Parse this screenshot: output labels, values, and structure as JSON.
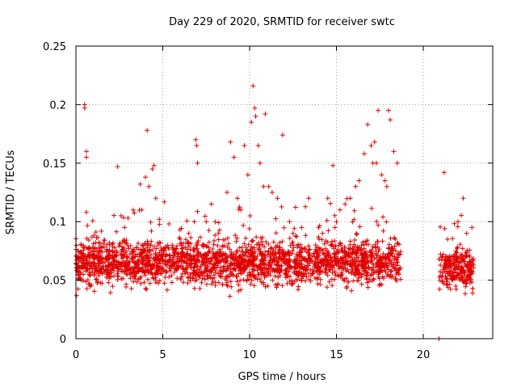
{
  "chart_data": {
    "type": "scatter",
    "title": "Day 229 of 2020, SRMTID for receiver swtc",
    "xlabel": "GPS time / hours",
    "ylabel": "SRMTID / TECUs",
    "xlim": [
      0,
      24
    ],
    "ylim": [
      0,
      0.25
    ],
    "x_ticks": [
      0,
      5,
      10,
      15,
      20
    ],
    "y_ticks": [
      0,
      0.05,
      0.1,
      0.15,
      0.2,
      0.25
    ],
    "x_tick_labels": [
      "0",
      "5",
      "10",
      "15",
      "20"
    ],
    "y_tick_labels": [
      "0",
      "0.05",
      "0.1",
      "0.15",
      "0.2",
      "0.25"
    ],
    "grid": true,
    "marker": "+",
    "series_color": "#e00000",
    "series": [
      {
        "name": "SRMTID",
        "segments": [
          {
            "x_start": 0.0,
            "x_end": 18.7,
            "base_mean": 0.065,
            "spread": 0.018
          },
          {
            "x_start": 20.9,
            "x_end": 22.9,
            "base_mean": 0.06,
            "spread": 0.017
          }
        ],
        "x": [
          0.2,
          0.4,
          0.5,
          0.5,
          0.6,
          0.6,
          0.6,
          1.0,
          1.3,
          1.8,
          2.4,
          2.6,
          2.8,
          3.0,
          3.3,
          3.7,
          4.0,
          4.1,
          4.2,
          4.4,
          4.5,
          4.6,
          4.8,
          5.1,
          6.0,
          6.5,
          6.9,
          6.95,
          7.0,
          7.5,
          7.8,
          8.2,
          8.7,
          8.9,
          9.1,
          9.3,
          9.5,
          9.7,
          9.9,
          10.1,
          10.2,
          10.3,
          10.35,
          10.5,
          10.6,
          10.8,
          10.9,
          11.1,
          11.3,
          11.6,
          11.9,
          12.3,
          12.5,
          12.8,
          13.0,
          13.4,
          13.8,
          14.0,
          14.2,
          14.5,
          14.8,
          15.0,
          15.2,
          15.5,
          15.8,
          16.1,
          16.3,
          16.6,
          16.8,
          17.0,
          17.1,
          17.2,
          17.3,
          17.4,
          17.6,
          17.8,
          17.9,
          18.0,
          18.1,
          18.3,
          18.5,
          20.9,
          21.1,
          21.2,
          21.4,
          21.7,
          22.0,
          22.3,
          22.5,
          22.8
        ],
        "y": [
          0.06,
          0.07,
          0.2,
          0.197,
          0.16,
          0.155,
          0.108,
          0.075,
          0.082,
          0.076,
          0.147,
          0.105,
          0.095,
          0.103,
          0.11,
          0.132,
          0.138,
          0.178,
          0.13,
          0.145,
          0.148,
          0.12,
          0.102,
          0.075,
          0.085,
          0.09,
          0.17,
          0.165,
          0.15,
          0.1,
          0.115,
          0.09,
          0.125,
          0.168,
          0.155,
          0.12,
          0.11,
          0.165,
          0.14,
          0.185,
          0.216,
          0.197,
          0.19,
          0.165,
          0.15,
          0.13,
          0.192,
          0.13,
          0.125,
          0.12,
          0.174,
          0.1,
          0.09,
          0.08,
          0.095,
          0.12,
          0.08,
          0.085,
          0.09,
          0.12,
          0.148,
          0.1,
          0.11,
          0.115,
          0.12,
          0.13,
          0.135,
          0.158,
          0.183,
          0.165,
          0.15,
          0.168,
          0.15,
          0.195,
          0.14,
          0.135,
          0.13,
          0.195,
          0.187,
          0.16,
          0.15,
          0.0,
          0.07,
          0.142,
          0.085,
          0.07,
          0.1,
          0.12,
          0.09,
          0.095
        ]
      }
    ]
  }
}
